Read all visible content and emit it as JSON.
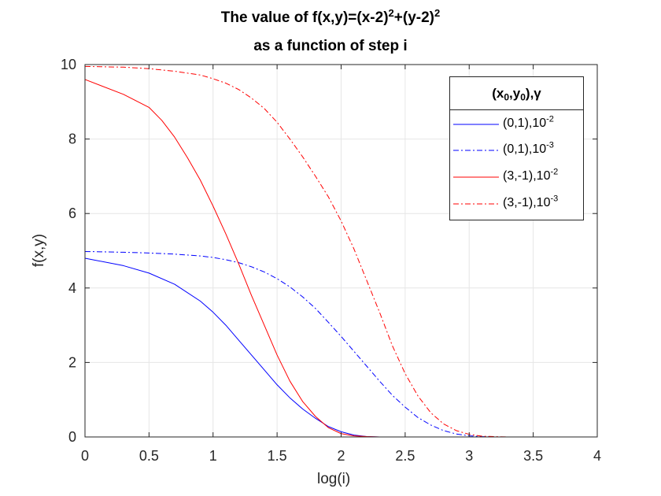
{
  "chart_data": {
    "type": "line",
    "title": {
      "line1_prefix": "The value of f(x,y)=(x-2)",
      "line1_exp1": "2",
      "line1_mid": "+(y-2)",
      "line1_exp2": "2",
      "line2": "as a function of step i"
    },
    "xlabel": "log(i)",
    "ylabel": "f(x,y)",
    "xlim": [
      0,
      4
    ],
    "ylim": [
      0,
      10
    ],
    "xticks": [
      0,
      0.5,
      1,
      1.5,
      2,
      2.5,
      3,
      3.5,
      4
    ],
    "xtick_labels": [
      "0",
      "0.5",
      "1",
      "1.5",
      "2",
      "2.5",
      "3",
      "3.5",
      "4"
    ],
    "yticks": [
      0,
      2,
      4,
      6,
      8,
      10
    ],
    "ytick_labels": [
      "0",
      "2",
      "4",
      "6",
      "8",
      "10"
    ],
    "grid": true,
    "legend": {
      "placement": "top-right",
      "title_parts": [
        "(x",
        "0",
        ",y",
        "0",
        "),γ"
      ],
      "entries": [
        {
          "base": "(0,1),10",
          "exp": "-2"
        },
        {
          "base": "(0,1),10",
          "exp": "-3"
        },
        {
          "base": "(3,-1),10",
          "exp": "-2"
        },
        {
          "base": "(3,-1),10",
          "exp": "-3"
        }
      ]
    },
    "series": [
      {
        "color": "#0000ff",
        "dash": "solid",
        "x": [
          0,
          0.3,
          0.5,
          0.7,
          0.9,
          1.0,
          1.1,
          1.2,
          1.3,
          1.4,
          1.5,
          1.6,
          1.7,
          1.8,
          1.9,
          2.0,
          2.1,
          2.2,
          2.3,
          2.5,
          3.0,
          3.5,
          3.85
        ],
        "y": [
          4.8,
          4.6,
          4.4,
          4.1,
          3.65,
          3.35,
          3.0,
          2.6,
          2.2,
          1.8,
          1.4,
          1.05,
          0.75,
          0.5,
          0.28,
          0.14,
          0.05,
          0.01,
          0,
          0,
          0,
          0,
          0
        ]
      },
      {
        "color": "#0000ff",
        "dash": "dashdot",
        "x": [
          0,
          0.3,
          0.5,
          0.7,
          0.9,
          1.0,
          1.1,
          1.2,
          1.3,
          1.4,
          1.5,
          1.6,
          1.7,
          1.8,
          1.9,
          2.0,
          2.1,
          2.2,
          2.3,
          2.4,
          2.5,
          2.6,
          2.7,
          2.8,
          2.9,
          3.0,
          3.1,
          3.2,
          3.3,
          3.5,
          3.85
        ],
        "y": [
          4.98,
          4.96,
          4.94,
          4.91,
          4.86,
          4.82,
          4.76,
          4.68,
          4.57,
          4.43,
          4.25,
          4.03,
          3.76,
          3.45,
          3.08,
          2.7,
          2.3,
          1.9,
          1.5,
          1.12,
          0.8,
          0.52,
          0.32,
          0.17,
          0.08,
          0.03,
          0.01,
          0,
          0,
          0,
          0
        ]
      },
      {
        "color": "#ff0000",
        "dash": "solid",
        "x": [
          0,
          0.3,
          0.5,
          0.6,
          0.7,
          0.8,
          0.9,
          1.0,
          1.1,
          1.2,
          1.3,
          1.4,
          1.5,
          1.6,
          1.7,
          1.8,
          1.9,
          2.0,
          2.1,
          2.2,
          2.3,
          2.5,
          3.0,
          3.5,
          3.85
        ],
        "y": [
          9.6,
          9.2,
          8.85,
          8.5,
          8.05,
          7.5,
          6.9,
          6.2,
          5.45,
          4.65,
          3.8,
          3.0,
          2.2,
          1.5,
          0.95,
          0.55,
          0.25,
          0.09,
          0.03,
          0.01,
          0,
          0,
          0,
          0,
          0
        ]
      },
      {
        "color": "#ff0000",
        "dash": "dashdot",
        "x": [
          0,
          0.3,
          0.5,
          0.7,
          0.9,
          1.0,
          1.1,
          1.2,
          1.3,
          1.4,
          1.5,
          1.6,
          1.7,
          1.8,
          1.9,
          2.0,
          2.1,
          2.2,
          2.3,
          2.4,
          2.5,
          2.6,
          2.7,
          2.8,
          2.9,
          3.0,
          3.1,
          3.2,
          3.3,
          3.5,
          3.85
        ],
        "y": [
          9.95,
          9.93,
          9.89,
          9.82,
          9.72,
          9.62,
          9.5,
          9.33,
          9.1,
          8.82,
          8.45,
          8.0,
          7.52,
          7.0,
          6.45,
          5.8,
          5.05,
          4.2,
          3.35,
          2.45,
          1.7,
          1.1,
          0.65,
          0.35,
          0.17,
          0.07,
          0.02,
          0.01,
          0,
          0,
          0
        ]
      }
    ]
  }
}
